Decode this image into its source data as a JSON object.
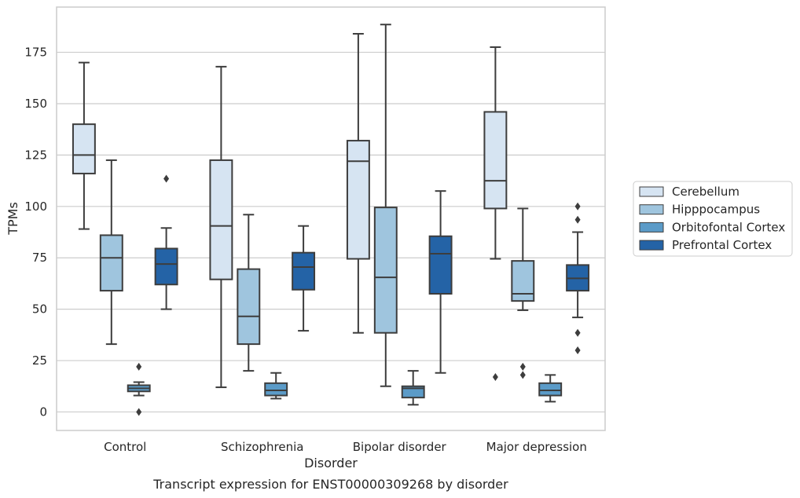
{
  "chart_data": {
    "type": "box",
    "title": "",
    "caption": "Transcript expression for ENST00000309268 by disorder",
    "xlabel": "Disorder",
    "ylabel": "TPMs",
    "ylim": [
      -9,
      197
    ],
    "yticks": [
      0,
      25,
      50,
      75,
      100,
      125,
      150,
      175
    ],
    "grid": "horizontal",
    "legend_position": "right",
    "categories": [
      "Control",
      "Schizophrenia",
      "Bipolar disorder",
      "Major depression"
    ],
    "series": [
      {
        "name": "Cerebellum",
        "color": "#d6e4f2",
        "boxes": [
          {
            "min": 89,
            "q1": 116,
            "median": 125,
            "q3": 140,
            "max": 170,
            "outliers": []
          },
          {
            "min": 12,
            "q1": 64.5,
            "median": 90.5,
            "q3": 122.5,
            "max": 168,
            "outliers": []
          },
          {
            "min": 38.5,
            "q1": 74.5,
            "median": 122,
            "q3": 132,
            "max": 184,
            "outliers": []
          },
          {
            "min": 74.5,
            "q1": 99,
            "median": 112.5,
            "q3": 146,
            "max": 177.5,
            "outliers": [
              17
            ]
          }
        ]
      },
      {
        "name": "Hipppocampus",
        "color": "#9fc5de",
        "boxes": [
          {
            "min": 33,
            "q1": 59,
            "median": 75,
            "q3": 86,
            "max": 122.5,
            "outliers": []
          },
          {
            "min": 20,
            "q1": 33,
            "median": 46.5,
            "q3": 69.5,
            "max": 96,
            "outliers": []
          },
          {
            "min": 12.5,
            "q1": 38.5,
            "median": 65.5,
            "q3": 99.5,
            "max": 188.5,
            "outliers": []
          },
          {
            "min": 49.5,
            "q1": 54,
            "median": 57.5,
            "q3": 73.5,
            "max": 99,
            "outliers": [
              22,
              18
            ]
          }
        ]
      },
      {
        "name": "Orbitofontal Cortex",
        "color": "#5b9bc8",
        "boxes": [
          {
            "min": 8,
            "q1": 10,
            "median": 11.5,
            "q3": 13,
            "max": 14.5,
            "outliers": [
              22,
              0
            ]
          },
          {
            "min": 6.5,
            "q1": 8,
            "median": 10.5,
            "q3": 14,
            "max": 19,
            "outliers": []
          },
          {
            "min": 3.5,
            "q1": 7,
            "median": 11.5,
            "q3": 12.5,
            "max": 20,
            "outliers": []
          },
          {
            "min": 5,
            "q1": 8,
            "median": 10.5,
            "q3": 14,
            "max": 18,
            "outliers": []
          }
        ]
      },
      {
        "name": "Prefrontal Cortex",
        "color": "#2463a6",
        "boxes": [
          {
            "min": 50,
            "q1": 62,
            "median": 72,
            "q3": 79.5,
            "max": 89.5,
            "outliers": [
              113.5
            ]
          },
          {
            "min": 39.5,
            "q1": 59.5,
            "median": 70.5,
            "q3": 77.5,
            "max": 90.5,
            "outliers": []
          },
          {
            "min": 19,
            "q1": 57.5,
            "median": 77,
            "q3": 85.5,
            "max": 107.5,
            "outliers": []
          },
          {
            "min": 46,
            "q1": 59,
            "median": 65,
            "q3": 71.5,
            "max": 87.5,
            "outliers": [
              100,
              93.5,
              38.5,
              30
            ]
          }
        ]
      }
    ]
  }
}
